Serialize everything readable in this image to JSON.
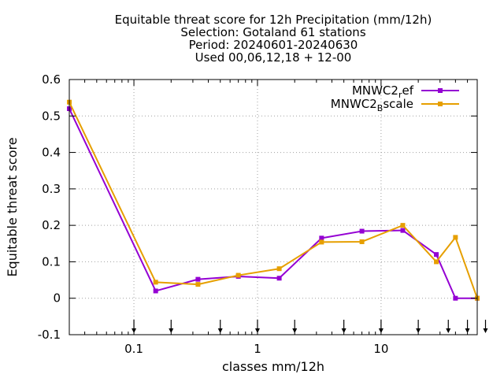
{
  "chart_data": {
    "type": "line",
    "title_lines": [
      "Equitable threat score  for 12h Precipitation (mm/12h)",
      "Selection: Gotaland     61 stations",
      "Period: 20240601-20240630",
      "Used 00,06,12,18 + 12-00"
    ],
    "xlabel": "classes mm/12h",
    "ylabel": "Equitable threat score",
    "x_scale": "log",
    "xlim": [
      0.03,
      60
    ],
    "ylim": [
      -0.1,
      0.6
    ],
    "yticks": [
      -0.1,
      0,
      0.1,
      0.2,
      0.3,
      0.4,
      0.5,
      0.6
    ],
    "ytick_labels": [
      "-0.1",
      "0",
      "0.1",
      "0.2",
      "0.3",
      "0.4",
      "0.5",
      "0.6"
    ],
    "xticks": [
      0.1,
      1,
      10
    ],
    "xtick_labels": [
      "0.1",
      "1",
      "10"
    ],
    "grid": true,
    "legend_position": "top-right",
    "threshold_arrows": [
      0.1,
      0.2,
      0.5,
      1,
      2,
      5,
      10,
      20,
      35,
      50,
      70
    ],
    "series": [
      {
        "name_main": "MNWC2",
        "name_sub": "r",
        "name_tail": "ef",
        "color": "#9400d3",
        "x": [
          0.03,
          0.15,
          0.33,
          0.7,
          1.5,
          3.3,
          7,
          15,
          28,
          40,
          60
        ],
        "y": [
          0.52,
          0.02,
          0.052,
          0.06,
          0.055,
          0.165,
          0.184,
          0.186,
          0.12,
          0.0,
          0.0
        ]
      },
      {
        "name_main": "MNWC2",
        "name_sub": "B",
        "name_tail": "scale",
        "color": "#e69f00",
        "x": [
          0.03,
          0.15,
          0.33,
          0.7,
          1.5,
          3.3,
          7,
          15,
          28,
          40,
          60
        ],
        "y": [
          0.538,
          0.044,
          0.038,
          0.063,
          0.081,
          0.154,
          0.155,
          0.2,
          0.1,
          0.167,
          0.0
        ]
      }
    ]
  }
}
